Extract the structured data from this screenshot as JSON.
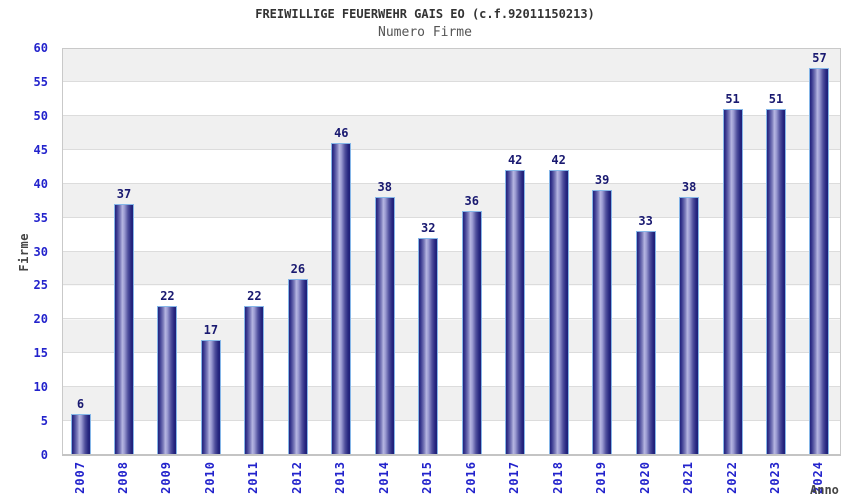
{
  "header": {
    "title": "FREIWILLIGE FEUERWEHR GAIS EO (c.f.92011150213)",
    "subtitle": "Numero Firme"
  },
  "chart_data": {
    "type": "bar",
    "title": "FREIWILLIGE FEUERWEHR GAIS EO (c.f.92011150213)",
    "subtitle": "Numero Firme",
    "categories": [
      "2007",
      "2008",
      "2009",
      "2010",
      "2011",
      "2012",
      "2013",
      "2014",
      "2015",
      "2016",
      "2017",
      "2018",
      "2019",
      "2020",
      "2021",
      "2022",
      "2023",
      "2024"
    ],
    "values": [
      6,
      37,
      22,
      17,
      22,
      26,
      46,
      38,
      32,
      36,
      42,
      42,
      39,
      33,
      38,
      51,
      51,
      57
    ],
    "xlabel": "Anno",
    "ylabel": "Firme",
    "ylim": [
      0,
      60
    ],
    "ytick_step": 5,
    "grid": true,
    "legend": false,
    "colors": {
      "tick_label": "#2323cc",
      "value_label": "#191970",
      "bar_dark": "#23237d",
      "bar_highlight": "#b6b6e2",
      "bar_border": "#85b6e8",
      "band": "#f0f0f0",
      "gridline": "#dcdcdc",
      "plot_border": "#c9c9c9",
      "title": "#333333",
      "subtitle": "#555555",
      "axis_title": "#444444"
    }
  }
}
